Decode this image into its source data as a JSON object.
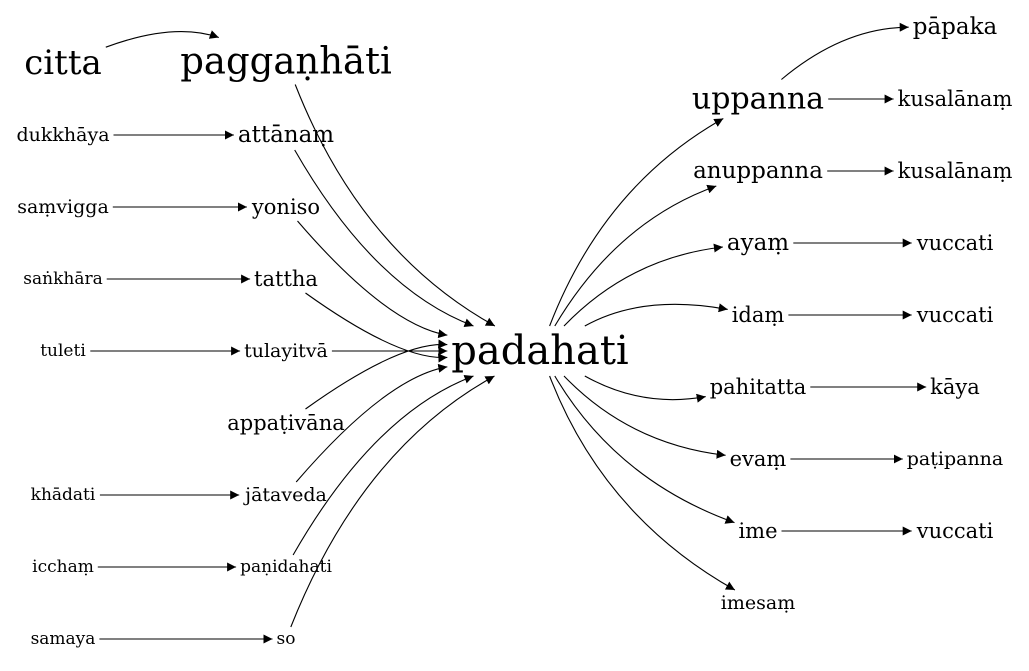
{
  "nodes": {
    "padahati": "padahati",
    "citta": "citta",
    "paggan_hati": "paggaṇhāti",
    "dukkhaya": "dukkhāya",
    "attanam": "attānaṃ",
    "samvigga": "saṃvigga",
    "yoniso": "yoniso",
    "sankhara": "saṅkhāra",
    "tattha": "tattha",
    "tuleti": "tuleti",
    "tulayitva": "tulayitvā",
    "appativana": "appaṭivāna",
    "khadati": "khādati",
    "jataveda": "jātaveda",
    "iccham": "icchaṃ",
    "panidahati": "paṇidahati",
    "samaya": "samaya",
    "so": "so",
    "uppanna": "uppanna",
    "papaka": "pāpaka",
    "kusalanam_1": "kusalānaṃ",
    "anuppanna": "anuppanna",
    "kusalanam_2": "kusalānaṃ",
    "ayam": "ayaṃ",
    "vuccati_1": "vuccati",
    "idam": "idaṃ",
    "vuccati_2": "vuccati",
    "pahitatta": "pahitatta",
    "kaya": "kāya",
    "evam": "evaṃ",
    "patipanna": "paṭipanna",
    "ime": "ime",
    "vuccati_3": "vuccati",
    "imesam": "imesaṃ"
  },
  "edges": [
    [
      "citta",
      "paggan_hati"
    ],
    [
      "dukkhaya",
      "attanam"
    ],
    [
      "samvigga",
      "yoniso"
    ],
    [
      "sankhara",
      "tattha"
    ],
    [
      "tuleti",
      "tulayitva"
    ],
    [
      "khadati",
      "jataveda"
    ],
    [
      "iccham",
      "panidahati"
    ],
    [
      "samaya",
      "so"
    ],
    [
      "paggan_hati",
      "padahati"
    ],
    [
      "attanam",
      "padahati"
    ],
    [
      "yoniso",
      "padahati"
    ],
    [
      "tattha",
      "padahati"
    ],
    [
      "tulayitva",
      "padahati"
    ],
    [
      "appativana",
      "padahati"
    ],
    [
      "jataveda",
      "padahati"
    ],
    [
      "panidahati",
      "padahati"
    ],
    [
      "so",
      "padahati"
    ],
    [
      "padahati",
      "uppanna"
    ],
    [
      "padahati",
      "anuppanna"
    ],
    [
      "padahati",
      "ayam"
    ],
    [
      "padahati",
      "idam"
    ],
    [
      "padahati",
      "pahitatta"
    ],
    [
      "padahati",
      "evam"
    ],
    [
      "padahati",
      "ime"
    ],
    [
      "padahati",
      "imesam"
    ],
    [
      "uppanna",
      "papaka"
    ],
    [
      "uppanna",
      "kusalanam_1"
    ],
    [
      "anuppanna",
      "kusalanam_2"
    ],
    [
      "ayam",
      "vuccati_1"
    ],
    [
      "idam",
      "vuccati_2"
    ],
    [
      "pahitatta",
      "kaya"
    ],
    [
      "evam",
      "patipanna"
    ],
    [
      "ime",
      "vuccati_3"
    ]
  ]
}
